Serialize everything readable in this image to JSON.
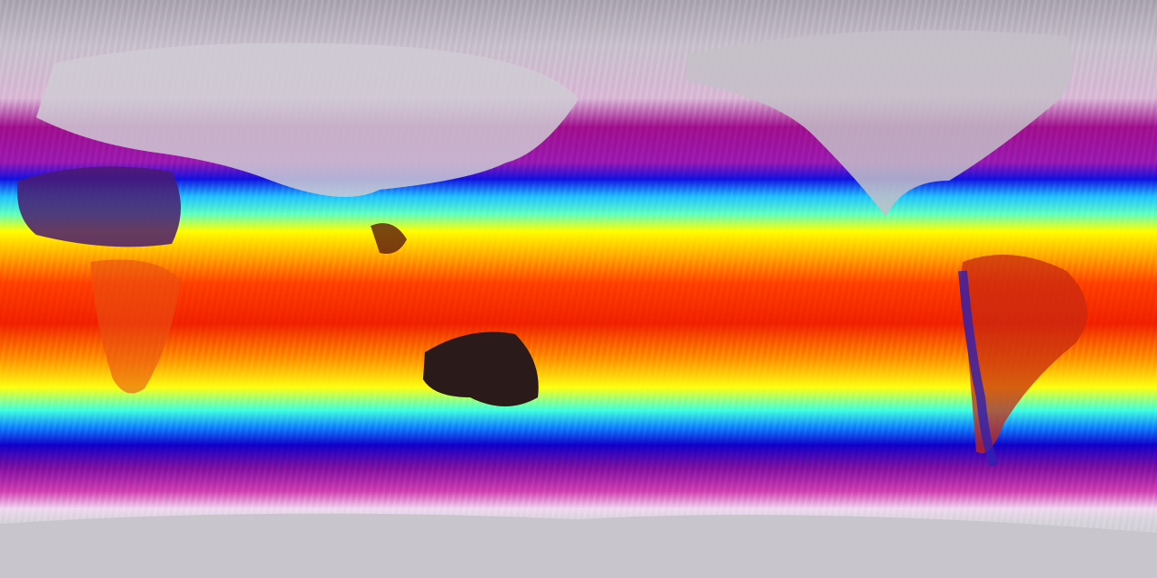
{
  "map": {
    "projection": "equirectangular",
    "variable": "temperature",
    "colormap": [
      {
        "at": 0,
        "color": "#aaa4b0"
      },
      {
        "at": 8,
        "color": "#c8c0cc"
      },
      {
        "at": 17,
        "color": "#d9b8d6"
      },
      {
        "at": 22,
        "color": "#a0108c"
      },
      {
        "at": 28,
        "color": "#9a1ab0"
      },
      {
        "at": 31,
        "color": "#1010e0"
      },
      {
        "at": 34,
        "color": "#20c0ff"
      },
      {
        "at": 37,
        "color": "#60ffc0"
      },
      {
        "at": 40,
        "color": "#ffff00"
      },
      {
        "at": 44,
        "color": "#ffb000"
      },
      {
        "at": 49,
        "color": "#ff4000"
      },
      {
        "at": 56,
        "color": "#f02000"
      },
      {
        "at": 62,
        "color": "#ff9000"
      },
      {
        "at": 67,
        "color": "#ffff10"
      },
      {
        "at": 71,
        "color": "#40ffe0"
      },
      {
        "at": 74,
        "color": "#1080ff"
      },
      {
        "at": 77,
        "color": "#1000c8"
      },
      {
        "at": 81,
        "color": "#8010a0"
      },
      {
        "at": 85,
        "color": "#d040b0"
      },
      {
        "at": 88,
        "color": "#f0d8f0"
      },
      {
        "at": 90,
        "color": "#d8d4dc"
      },
      {
        "at": 100,
        "color": "#c0bcc4"
      }
    ],
    "land_colors": {
      "polar": "#c8c6cc",
      "desert_hot": "#2a1a1a",
      "sahara": "#5a1a6a",
      "tropical": "#d03010",
      "andes": "#3020a0"
    }
  }
}
